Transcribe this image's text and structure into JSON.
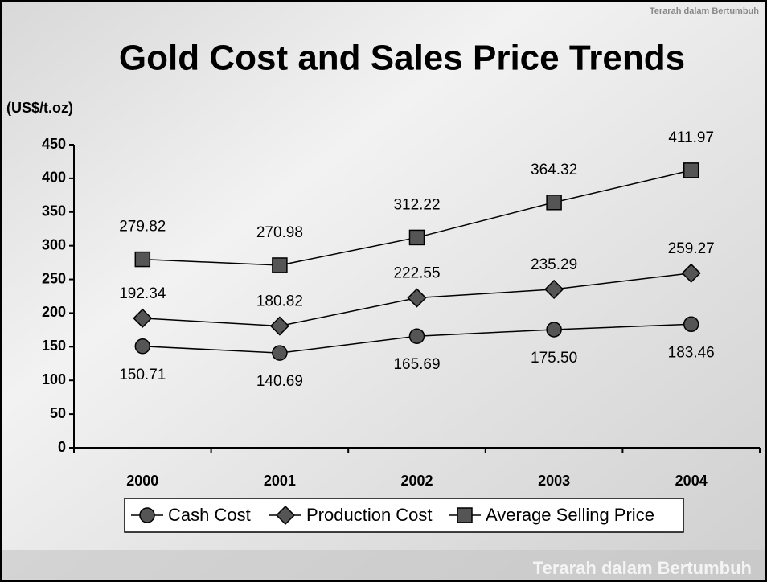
{
  "chart_data": {
    "type": "line",
    "title": "Gold Cost and Sales Price Trends",
    "y_label": "(US$/t.oz)",
    "categories": [
      "2000",
      "2001",
      "2002",
      "2003",
      "2004"
    ],
    "series": [
      {
        "name": "Cash Cost",
        "color": "#555555",
        "marker": "circle",
        "values": [
          150.71,
          140.69,
          165.69,
          175.5,
          183.46
        ],
        "value_labels": [
          "150.71",
          "140.69",
          "165.69",
          "175.50",
          "183.46"
        ]
      },
      {
        "name": "Production Cost",
        "color": "#555555",
        "marker": "diamond",
        "values": [
          192.34,
          180.82,
          222.55,
          235.29,
          259.27
        ],
        "value_labels": [
          "192.34",
          "180.82",
          "222.55",
          "235.29",
          "259.27"
        ]
      },
      {
        "name": "Average Selling Price",
        "color": "#555555",
        "marker": "square",
        "values": [
          279.82,
          270.98,
          312.22,
          364.32,
          411.97
        ],
        "value_labels": [
          "279.82",
          "270.98",
          "312.22",
          "364.32",
          "411.97"
        ]
      }
    ],
    "ylim": [
      0,
      450
    ],
    "yticks": [
      0,
      50,
      100,
      150,
      200,
      250,
      300,
      350,
      400,
      450
    ],
    "grid": false,
    "legend": "bottom"
  },
  "branding": {
    "top": "Terarah dalam Bertumbuh",
    "bottom": "Terarah dalam Bertumbuh"
  }
}
